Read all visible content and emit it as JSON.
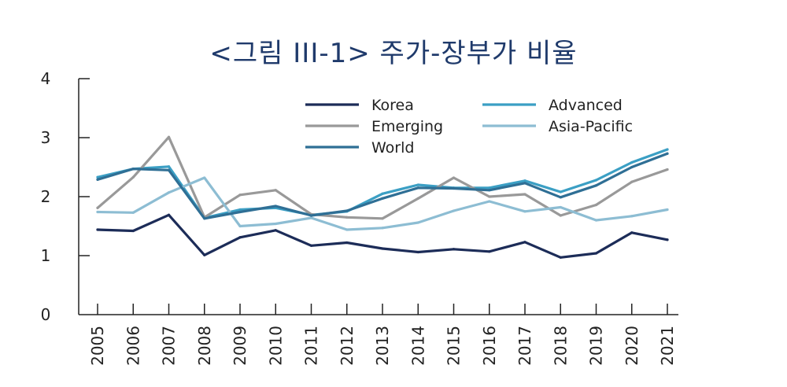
{
  "chart_data": {
    "type": "line",
    "title": "<그림 III-1> 주가-장부가 비율",
    "xlabel": "",
    "ylabel": "",
    "categories": [
      "2005",
      "2006",
      "2007",
      "2008",
      "2009",
      "2010",
      "2011",
      "2012",
      "2013",
      "2014",
      "2015",
      "2016",
      "2017",
      "2018",
      "2019",
      "2020",
      "2021"
    ],
    "ylim": [
      0,
      4
    ],
    "yticks": [
      "0",
      "1",
      "2",
      "3",
      "4"
    ],
    "series": [
      {
        "name": "Korea",
        "color": "#1c2c58",
        "values": [
          1.44,
          1.42,
          1.69,
          1.01,
          1.31,
          1.43,
          1.17,
          1.22,
          1.12,
          1.06,
          1.11,
          1.07,
          1.23,
          0.97,
          1.04,
          1.39,
          1.27
        ]
      },
      {
        "name": "Advanced",
        "color": "#3b9fc4",
        "values": [
          2.33,
          2.47,
          2.51,
          1.64,
          1.78,
          1.81,
          1.69,
          1.75,
          2.05,
          2.2,
          2.15,
          2.15,
          2.27,
          2.08,
          2.28,
          2.58,
          2.8
        ]
      },
      {
        "name": "Emerging",
        "color": "#999999",
        "values": [
          1.81,
          2.33,
          3.01,
          1.65,
          2.03,
          2.11,
          1.7,
          1.65,
          1.63,
          1.97,
          2.32,
          2.0,
          2.04,
          1.68,
          1.86,
          2.25,
          2.46
        ]
      },
      {
        "name": "Asia-Pacific",
        "color": "#8dbdd3",
        "values": [
          1.74,
          1.73,
          2.07,
          2.32,
          1.5,
          1.54,
          1.64,
          1.44,
          1.47,
          1.56,
          1.76,
          1.92,
          1.75,
          1.82,
          1.6,
          1.67,
          1.78
        ]
      },
      {
        "name": "World",
        "color": "#2f6f95",
        "values": [
          2.29,
          2.47,
          2.45,
          1.63,
          1.74,
          1.84,
          1.68,
          1.76,
          1.97,
          2.15,
          2.14,
          2.11,
          2.23,
          1.99,
          2.19,
          2.5,
          2.73
        ]
      }
    ],
    "legend": "top-right"
  }
}
